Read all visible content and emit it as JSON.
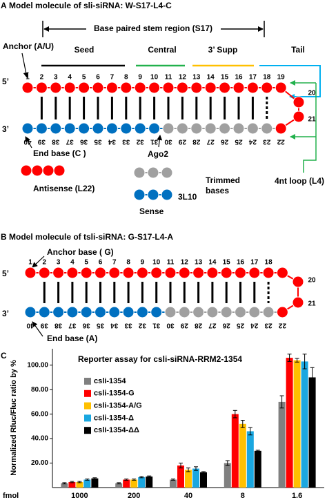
{
  "panel_a": {
    "letter": "A",
    "title": "Model molecule of sli-siRNA: W-S17-L4-C",
    "stem_label": "Base paired stem region (S17)",
    "anchor": "Anchor (A/U)",
    "regions": [
      "Seed",
      "Central",
      "3’ Supp",
      "Tail"
    ],
    "five_prime": "5’",
    "three_prime": "3’",
    "top_numbers": [
      1,
      2,
      3,
      4,
      5,
      6,
      7,
      8,
      9,
      10,
      11,
      12,
      13,
      14,
      15,
      16,
      17,
      18,
      19
    ],
    "loop_numbers": [
      20,
      21
    ],
    "bottom_numbers": [
      40,
      39,
      38,
      37,
      36,
      35,
      34,
      33,
      32,
      31,
      30,
      29,
      28,
      27,
      26,
      25,
      24,
      23,
      22
    ],
    "end_base": "End base (C )",
    "ago2": "Ago2",
    "antisense": "Antisense (L22)",
    "trimmed": [
      "Trimmed",
      "bases"
    ],
    "sense_length": "3L10",
    "sense": "Sense",
    "loop": "4nt loop (L4)"
  },
  "panel_b": {
    "letter": "B",
    "title": "Model molecule of tsli-siRNA: G-S17-L4-A",
    "anchor": "Anchor base ( G)",
    "five_prime": "5’",
    "three_prime": "3’",
    "top_numbers": [
      1,
      2,
      3,
      4,
      5,
      6,
      7,
      8,
      9,
      10,
      11,
      12,
      13,
      14,
      15,
      16,
      17,
      18
    ],
    "loop_numbers": [
      20,
      21
    ],
    "bottom_numbers": [
      40,
      39,
      38,
      37,
      36,
      35,
      34,
      33,
      32,
      31,
      30,
      29,
      28,
      27,
      26,
      25,
      24,
      23,
      22
    ],
    "end_base": "End base (A)"
  },
  "chart_data": {
    "type": "bar",
    "letter": "C",
    "title": "Reporter assay for csli-siRNA-RRM2-1354",
    "y_label": "Normalized Rluc/Fluc ratio by %",
    "x_label": "fmol",
    "categories": [
      "1000",
      "200",
      "40",
      "8",
      "1.6"
    ],
    "series": [
      {
        "name": "csli-1354",
        "color": "#808080",
        "values": [
          3.5,
          3.5,
          6.5,
          20,
          70
        ],
        "errors": [
          0.5,
          0.5,
          0.5,
          2,
          5
        ]
      },
      {
        "name": "csli-1354-G",
        "color": "#ff0000",
        "values": [
          4.5,
          6.5,
          18,
          60,
          106
        ],
        "errors": [
          0.5,
          0.5,
          2,
          3,
          3
        ]
      },
      {
        "name": "csli-1354-A/G",
        "color": "#ffc000",
        "values": [
          4.5,
          6.5,
          14.5,
          52,
          104
        ],
        "errors": [
          0.5,
          0.5,
          1.5,
          3,
          1.5
        ]
      },
      {
        "name": "csli-1354-Δ",
        "color": "#1aa7e0",
        "values": [
          6.5,
          8.5,
          15.5,
          46,
          103
        ],
        "errors": [
          0.5,
          0.5,
          1.5,
          3,
          6
        ]
      },
      {
        "name": "csli-1354-ΔΔ",
        "color": "#000000",
        "values": [
          7.5,
          9,
          12.5,
          30,
          90
        ],
        "errors": [
          0.5,
          0.5,
          0.5,
          0.5,
          8
        ]
      }
    ],
    "ylim": [
      0,
      110
    ],
    "yticks": [
      {
        "value": 20,
        "label": "20.00"
      },
      {
        "value": 40,
        "label": "40.00"
      },
      {
        "value": 60,
        "label": "60.00"
      },
      {
        "value": 80,
        "label": "80.00"
      },
      {
        "value": 100,
        "label": "100.00"
      }
    ],
    "legend": "upper left"
  }
}
